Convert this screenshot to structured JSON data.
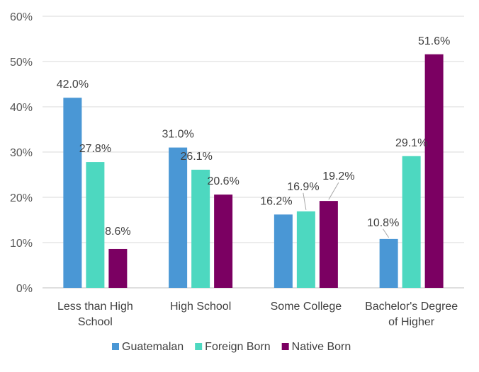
{
  "chart_data": {
    "type": "bar",
    "title": "",
    "xlabel": "",
    "ylabel": "",
    "ylim": [
      0,
      60
    ],
    "y_ticks": [
      "0%",
      "10%",
      "20%",
      "30%",
      "40%",
      "50%",
      "60%"
    ],
    "y_tick_values": [
      0,
      10,
      20,
      30,
      40,
      50,
      60
    ],
    "grid": "horizontal",
    "legend_position": "bottom",
    "categories": [
      [
        "Less than High",
        "School"
      ],
      [
        "High School"
      ],
      [
        "Some College"
      ],
      [
        "Bachelor's  Degree",
        "of Higher"
      ]
    ],
    "series": [
      {
        "name": "Guatemalan",
        "color": "#4a97d5",
        "values": [
          42.0,
          31.0,
          16.2,
          10.8
        ],
        "labels": [
          "42.0%",
          "31.0%",
          "16.2%",
          "10.8%"
        ]
      },
      {
        "name": "Foreign Born",
        "color": "#4dd8c0",
        "values": [
          27.8,
          26.1,
          16.9,
          29.1
        ],
        "labels": [
          "27.8%",
          "26.1%",
          "16.9%",
          "29.1%"
        ]
      },
      {
        "name": "Native Born",
        "color": "#7b0062",
        "values": [
          8.6,
          20.6,
          19.2,
          51.6
        ],
        "labels": [
          "8.6%",
          "20.6%",
          "19.2%",
          "51.6%"
        ]
      }
    ]
  }
}
